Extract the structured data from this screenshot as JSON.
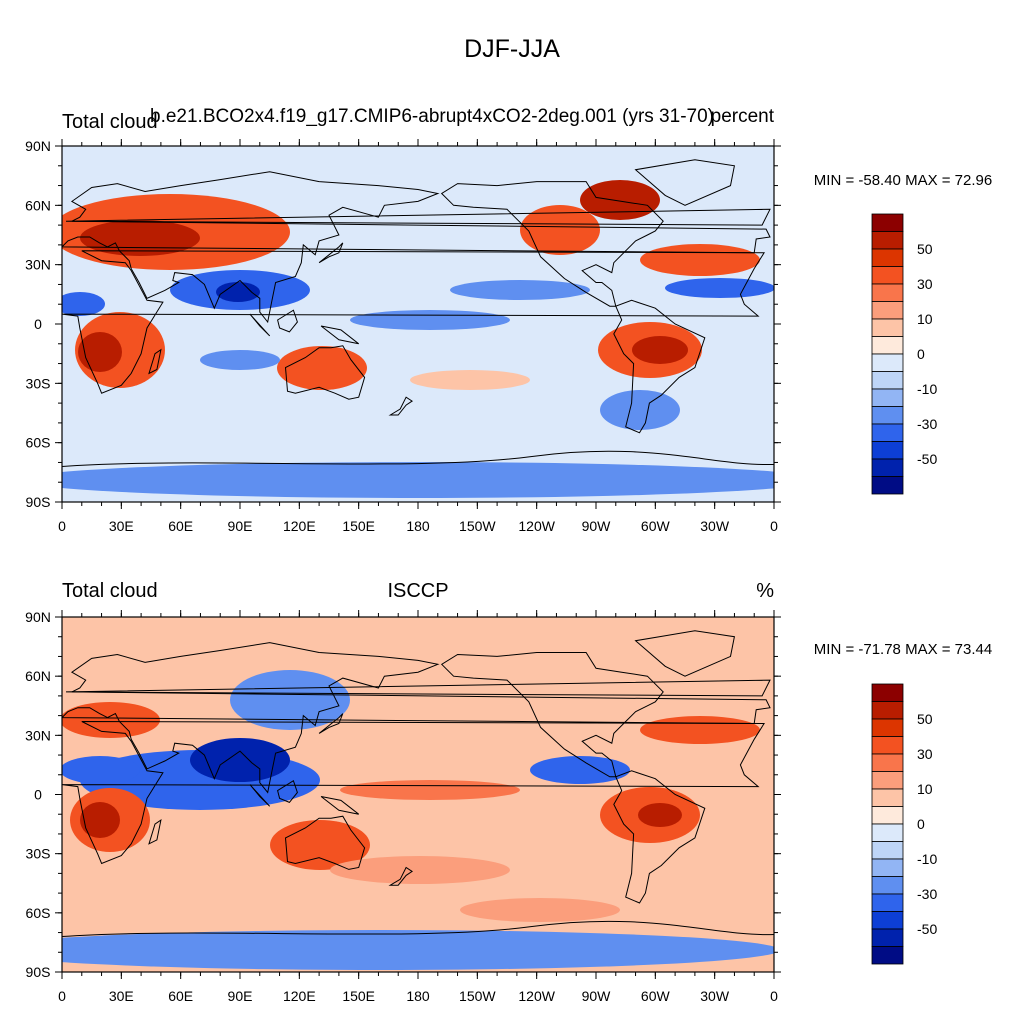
{
  "title": "DJF-JJA",
  "panels": [
    {
      "left_label": "Total cloud",
      "center_label": "b.e21.BCO2x4.f19_g17.CMIP6-abrupt4xCO2-2deg.001 (yrs 31-70)",
      "right_label": "percent",
      "minmax": "MIN = -58.40 MAX =  72.96"
    },
    {
      "left_label": "Total cloud",
      "center_label": "ISCCP",
      "right_label": "%",
      "minmax": "MIN = -71.78 MAX =  73.44"
    }
  ],
  "lat_ticks": [
    "90N",
    "60N",
    "30N",
    "0",
    "30S",
    "60S",
    "90S"
  ],
  "lon_ticks": [
    "0",
    "30E",
    "60E",
    "90E",
    "120E",
    "150E",
    "180",
    "150W",
    "120W",
    "90W",
    "60W",
    "30W",
    "0"
  ],
  "colorbar": {
    "labels": [
      "50",
      "30",
      "10",
      "0",
      "-10",
      "-30",
      "-50"
    ],
    "colors_top_to_bottom": [
      "#8c0000",
      "#b81d00",
      "#dc3500",
      "#f35221",
      "#f9754b",
      "#fb9e7c",
      "#fdc4a7",
      "#feeadc",
      "#dce9fa",
      "#bed5f7",
      "#92b5f4",
      "#5f8ff0",
      "#2f64ec",
      "#0d3fd6",
      "#0022ad",
      "#000c85"
    ]
  }
}
